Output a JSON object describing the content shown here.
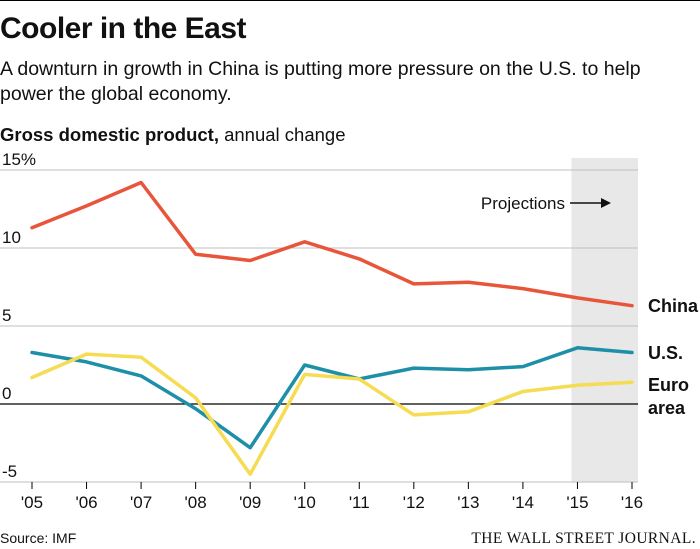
{
  "header": {
    "title": "Cooler in the East",
    "subtitle": "A downturn in growth in China is putting more pressure on the U.S. to help power the global economy.",
    "metric_bold": "Gross domestic product,",
    "metric_rest": " annual change"
  },
  "footer": {
    "source": "Source: IMF",
    "brand": "THE WALL STREET JOURNAL."
  },
  "colors": {
    "china": "#E8553A",
    "us": "#1E8FA8",
    "euro": "#F5DC52",
    "projection_band": "#E8E8E8",
    "grid": "#BFBFBF",
    "zero_line": "#000000"
  },
  "chart_data": {
    "type": "line",
    "title": "Gross domestic product, annual change",
    "x": [
      "'05",
      "'06",
      "'07",
      "'08",
      "'09",
      "'10",
      "'11",
      "'12",
      "'13",
      "'14",
      "'15",
      "'16"
    ],
    "y_ticks": [
      "15%",
      "10",
      "5",
      "0",
      "-5"
    ],
    "y_tick_values": [
      15,
      10,
      5,
      0,
      -5
    ],
    "ylim": [
      -5,
      15
    ],
    "projection": {
      "label": "Projections",
      "from_index": 10,
      "to_index": 11
    },
    "series": [
      {
        "key": "china",
        "name": "China",
        "values": [
          11.3,
          12.7,
          14.2,
          9.6,
          9.2,
          10.4,
          9.3,
          7.7,
          7.8,
          7.4,
          6.8,
          6.3
        ]
      },
      {
        "key": "us",
        "name": "U.S.",
        "values": [
          3.3,
          2.7,
          1.8,
          -0.3,
          -2.8,
          2.5,
          1.6,
          2.3,
          2.2,
          2.4,
          3.6,
          3.3
        ]
      },
      {
        "key": "euro",
        "name": "Euro area",
        "values": [
          1.7,
          3.2,
          3.0,
          0.4,
          -4.5,
          1.9,
          1.6,
          -0.7,
          -0.5,
          0.8,
          1.2,
          1.4
        ]
      }
    ],
    "series_labels": {
      "china": "China",
      "us": "U.S.",
      "euro_line1": "Euro",
      "euro_line2": "area"
    }
  }
}
